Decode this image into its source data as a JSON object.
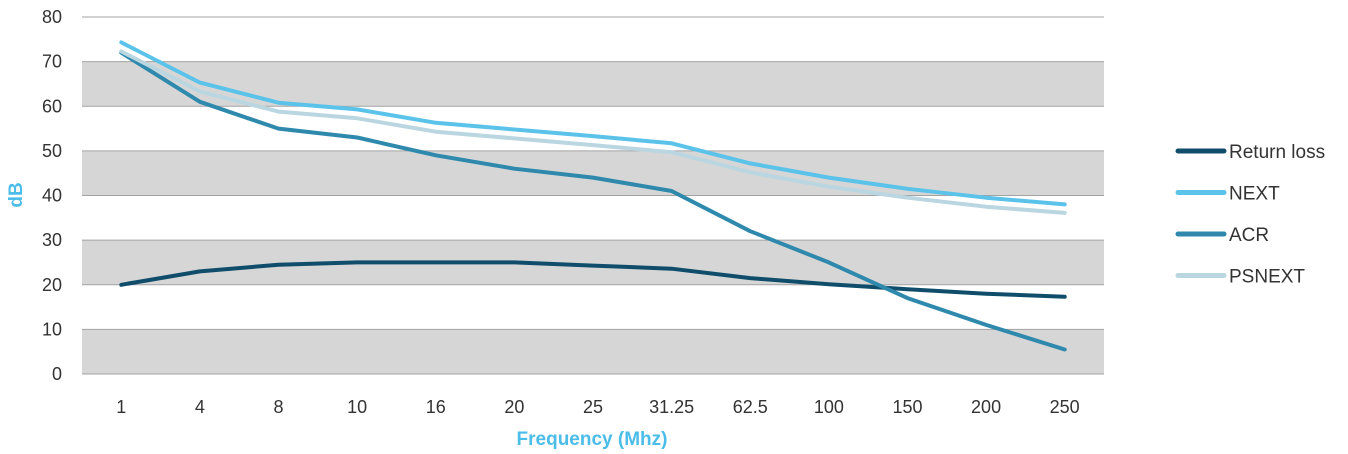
{
  "chart_data": {
    "type": "line",
    "title": "",
    "xlabel": "Frequency (Mhz)",
    "ylabel": "dB",
    "categories": [
      "1",
      "4",
      "8",
      "10",
      "16",
      "20",
      "25",
      "31.25",
      "62.5",
      "100",
      "150",
      "200",
      "250"
    ],
    "ylim": [
      0,
      80
    ],
    "yticks": [
      0,
      10,
      20,
      30,
      40,
      50,
      60,
      70,
      80
    ],
    "grid": "alternating horizontal bands",
    "legend_position": "right",
    "series": [
      {
        "name": "Return loss",
        "color": "#0f4d6b",
        "values": [
          20,
          23,
          24.5,
          25,
          25,
          25,
          24.3,
          23.6,
          21.5,
          20.1,
          19,
          18,
          17.3
        ]
      },
      {
        "name": "NEXT",
        "color": "#5bc3ea",
        "values": [
          74.3,
          65.3,
          60.8,
          59.3,
          56.3,
          54.8,
          53.3,
          51.7,
          47.2,
          44,
          41.5,
          39.5,
          38
        ]
      },
      {
        "name": "ACR",
        "color": "#2e89ad",
        "values": [
          72,
          61,
          55,
          53,
          49,
          46,
          44,
          41,
          32,
          25,
          17,
          11,
          5.5
        ]
      },
      {
        "name": "PSNEXT",
        "color": "#b9d6e1",
        "values": [
          72.3,
          63.3,
          58.8,
          57.3,
          54.3,
          52.8,
          51.3,
          49.7,
          45.2,
          42,
          39.5,
          37.5,
          36.1
        ]
      }
    ]
  },
  "colors": {
    "axis_title": "#4bbde8",
    "band_fill": "#d6d6d6",
    "gridline": "#a3a3a3"
  }
}
